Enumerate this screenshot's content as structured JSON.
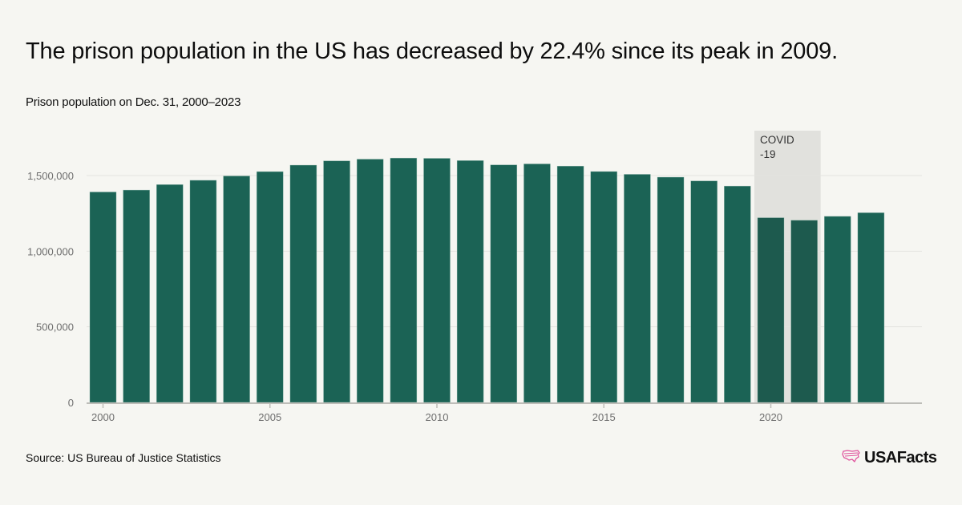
{
  "title": "The prison population in the US has decreased by 22.4% since its peak in 2009.",
  "subtitle": "Prison population on Dec. 31, 2000–2023",
  "source": "Source: US Bureau of Justice Statistics",
  "logo": {
    "text": "USAFacts",
    "icon": "us-map-icon",
    "icon_color": "#e0529c"
  },
  "colors": {
    "bar": "#1b6355",
    "bar_highlight": "#1d5a4e",
    "band": "#e1e1dd",
    "grid": "#e4e4e0",
    "axis": "#bdbdb8",
    "background": "#f6f6f2"
  },
  "chart_data": {
    "type": "bar",
    "title": "Prison population on Dec. 31, 2000–2023",
    "xlabel": "",
    "ylabel": "",
    "ylim": [
      0,
      1750000
    ],
    "grid": true,
    "yticks": [
      0,
      500000,
      1000000,
      1500000
    ],
    "ytick_labels": [
      "0",
      "500,000",
      "1,000,000",
      "1,500,000"
    ],
    "xticks": [
      2000,
      2005,
      2010,
      2015,
      2020
    ],
    "xtick_labels": [
      "2000",
      "2005",
      "2010",
      "2015",
      "2020"
    ],
    "categories": [
      2000,
      2001,
      2002,
      2003,
      2004,
      2005,
      2006,
      2007,
      2008,
      2009,
      2010,
      2011,
      2012,
      2013,
      2014,
      2015,
      2016,
      2017,
      2018,
      2019,
      2020,
      2021,
      2022,
      2023
    ],
    "values": [
      1391261,
      1404032,
      1440144,
      1468601,
      1497100,
      1525910,
      1568674,
      1596835,
      1608282,
      1615487,
      1613803,
      1598968,
      1570397,
      1576950,
      1562319,
      1526603,
      1508129,
      1489189,
      1464385,
      1430165,
      1221147,
      1204323,
      1230143,
      1254000
    ],
    "annotations": [
      {
        "type": "band",
        "label_lines": [
          "COVID",
          "-19"
        ],
        "from": 2020,
        "to": 2021
      }
    ]
  }
}
